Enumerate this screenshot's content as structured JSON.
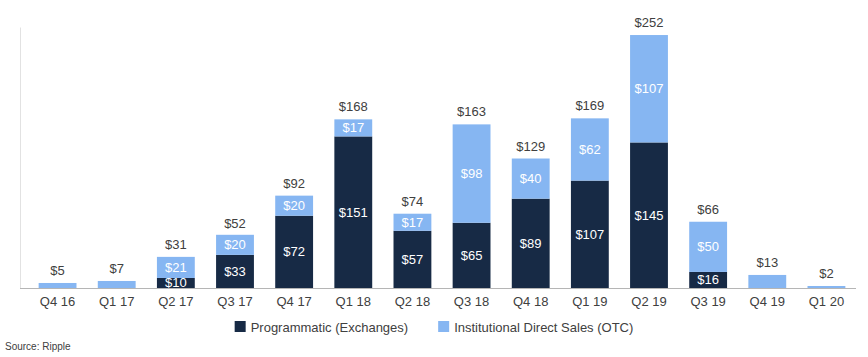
{
  "chart_data": {
    "type": "bar",
    "stacked": true,
    "data_labels": true,
    "tick_labels": "x",
    "legend": "bottom",
    "source": "Source: Ripple",
    "categories": [
      "Q4 16",
      "Q1 17",
      "Q2 17",
      "Q3 17",
      "Q4 17",
      "Q1 18",
      "Q2 18",
      "Q3 18",
      "Q4 18",
      "Q1 19",
      "Q2 19",
      "Q3 19",
      "Q4 19",
      "Q1 20"
    ],
    "series": [
      {
        "name": "Programmatic (Exchanges)",
        "color": "#172a45",
        "values": [
          null,
          null,
          10,
          33,
          72,
          151,
          57,
          65,
          89,
          107,
          145,
          16,
          null,
          null
        ],
        "value_labels": [
          null,
          null,
          "$10",
          "$33",
          "$72",
          "$151",
          "$57",
          "$65",
          "$89",
          "$107",
          "$145",
          "$16",
          null,
          null
        ]
      },
      {
        "name": "Institutional Direct Sales (OTC)",
        "color": "#86b6f2",
        "values": [
          5,
          7,
          21,
          20,
          20,
          17,
          17,
          98,
          40,
          62,
          107,
          50,
          13,
          2
        ],
        "value_labels": [
          null,
          null,
          "$21",
          "$20",
          "$20",
          "$17",
          "$17",
          "$98",
          "$40",
          "$62",
          "$107",
          "$50",
          null,
          null
        ]
      }
    ],
    "totals": [
      5,
      7,
      31,
      52,
      92,
      168,
      74,
      163,
      129,
      169,
      252,
      66,
      13,
      2
    ],
    "total_labels": [
      "$5",
      "$7",
      "$31",
      "$52",
      "$92",
      "$168",
      "$74",
      "$163",
      "$129",
      "$169",
      "$252",
      "$66",
      "$13",
      "$2"
    ],
    "ylim": [
      0,
      260
    ],
    "yticks": [],
    "grid": false
  }
}
